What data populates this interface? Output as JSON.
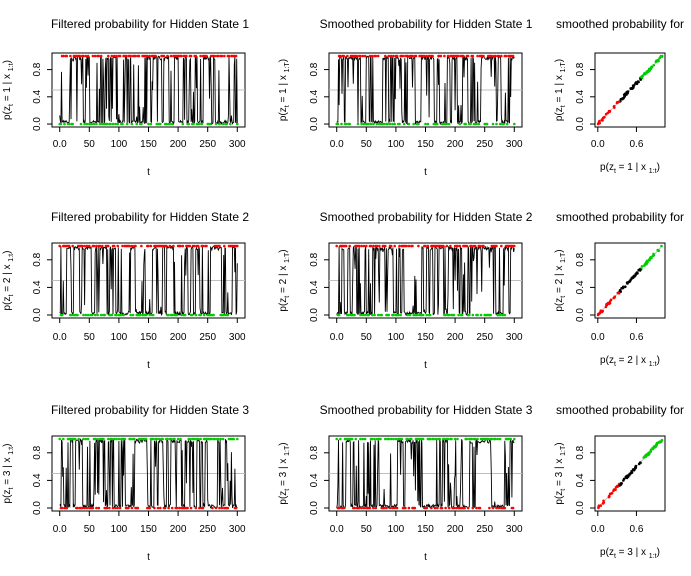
{
  "chart_data": [
    {
      "type": "line",
      "state": 1,
      "kind": "filtered",
      "title": "Filtered probability for Hidden State 1",
      "xlabel": "t",
      "ylabel": {
        "pre": "p(z",
        "sub1": "t",
        "mid": " = 1 | x ",
        "sub2": "1:t",
        "post": ")"
      },
      "xlim": [
        0,
        300
      ],
      "ylim": [
        0,
        1
      ],
      "xticks": [
        0,
        50,
        100,
        150,
        200,
        250,
        300
      ],
      "yticks": [
        0.0,
        0.4,
        0.8
      ],
      "hline": 0.5,
      "dominant_color": "#ff0000",
      "secondary_color": "#00cc00",
      "seed": 11
    },
    {
      "type": "line",
      "state": 1,
      "kind": "smoothed",
      "title": "Smoothed probability for Hidden State 1",
      "xlabel": "t",
      "ylabel": {
        "pre": "p(z",
        "sub1": "t",
        "mid": " = 1 | x ",
        "sub2": "1:T",
        "post": ")"
      },
      "xlim": [
        0,
        300
      ],
      "ylim": [
        0,
        1
      ],
      "xticks": [
        0,
        50,
        100,
        150,
        200,
        250,
        300
      ],
      "yticks": [
        0.0,
        0.4,
        0.8
      ],
      "hline": 0.5,
      "dominant_color": "#ff0000",
      "secondary_color": "#00cc00",
      "seed": 11
    },
    {
      "type": "scatter",
      "state": 1,
      "kind": "comparison",
      "title": "smoothed probability for",
      "xlabel": {
        "pre": "p(z",
        "sub1": "t",
        "mid": " = 1 | x ",
        "sub2": "1:t",
        "post": ")"
      },
      "ylabel": {
        "pre": "p(z",
        "sub1": "t",
        "mid": " = 1 | x ",
        "sub2": "1:T",
        "post": ")"
      },
      "xlim": [
        0,
        1
      ],
      "ylim": [
        0,
        1
      ],
      "xticks": [
        0.0,
        0.6
      ],
      "yticks": [
        0.0,
        0.4,
        0.8
      ],
      "colors": [
        "#ff0000",
        "#000000",
        "#00cc00"
      ],
      "seed": 11
    },
    {
      "type": "line",
      "state": 2,
      "kind": "filtered",
      "title": "Filtered probability for Hidden State 2",
      "xlabel": "t",
      "ylabel": {
        "pre": "p(z",
        "sub1": "t",
        "mid": " = 2 | x ",
        "sub2": "1:t",
        "post": ")"
      },
      "xlim": [
        0,
        300
      ],
      "ylim": [
        0,
        1
      ],
      "xticks": [
        0,
        50,
        100,
        150,
        200,
        250,
        300
      ],
      "yticks": [
        0.0,
        0.4,
        0.8
      ],
      "hline": 0.5,
      "dominant_color": "#ff0000",
      "secondary_color": "#00cc00",
      "seed": 23
    },
    {
      "type": "line",
      "state": 2,
      "kind": "smoothed",
      "title": "Smoothed probability for Hidden State 2",
      "xlabel": "t",
      "ylabel": {
        "pre": "p(z",
        "sub1": "t",
        "mid": " = 2 | x ",
        "sub2": "1:T",
        "post": ")"
      },
      "xlim": [
        0,
        300
      ],
      "ylim": [
        0,
        1
      ],
      "xticks": [
        0,
        50,
        100,
        150,
        200,
        250,
        300
      ],
      "yticks": [
        0.0,
        0.4,
        0.8
      ],
      "hline": 0.5,
      "dominant_color": "#ff0000",
      "secondary_color": "#00cc00",
      "seed": 23
    },
    {
      "type": "scatter",
      "state": 2,
      "kind": "comparison",
      "title": "smoothed probability for",
      "xlabel": {
        "pre": "p(z",
        "sub1": "t",
        "mid": " = 2 | x ",
        "sub2": "1:t",
        "post": ")"
      },
      "ylabel": {
        "pre": "p(z",
        "sub1": "t",
        "mid": " = 2 | x ",
        "sub2": "1:T",
        "post": ")"
      },
      "xlim": [
        0,
        1
      ],
      "ylim": [
        0,
        1
      ],
      "xticks": [
        0.0,
        0.6
      ],
      "yticks": [
        0.0,
        0.4,
        0.8
      ],
      "colors": [
        "#ff0000",
        "#000000",
        "#00cc00"
      ],
      "seed": 23
    },
    {
      "type": "line",
      "state": 3,
      "kind": "filtered",
      "title": "Filtered probability for Hidden State 3",
      "xlabel": "t",
      "ylabel": {
        "pre": "p(z",
        "sub1": "t",
        "mid": " = 3 | x ",
        "sub2": "1:t",
        "post": ")"
      },
      "xlim": [
        0,
        300
      ],
      "ylim": [
        0,
        1
      ],
      "xticks": [
        0,
        50,
        100,
        150,
        200,
        250,
        300
      ],
      "yticks": [
        0.0,
        0.4,
        0.8
      ],
      "hline": 0.5,
      "dominant_color": "#00cc00",
      "secondary_color": "#ff0000",
      "seed": 37
    },
    {
      "type": "line",
      "state": 3,
      "kind": "smoothed",
      "title": "Smoothed probability for Hidden State 3",
      "xlabel": "t",
      "ylabel": {
        "pre": "p(z",
        "sub1": "t",
        "mid": " = 3 | x ",
        "sub2": "1:T",
        "post": ")"
      },
      "xlim": [
        0,
        300
      ],
      "ylim": [
        0,
        1
      ],
      "xticks": [
        0,
        50,
        100,
        150,
        200,
        250,
        300
      ],
      "yticks": [
        0.0,
        0.4,
        0.8
      ],
      "hline": 0.5,
      "dominant_color": "#00cc00",
      "secondary_color": "#ff0000",
      "seed": 37
    },
    {
      "type": "scatter",
      "state": 3,
      "kind": "comparison",
      "title": "smoothed probability for",
      "xlabel": {
        "pre": "p(z",
        "sub1": "t",
        "mid": " = 3 | x ",
        "sub2": "1:t",
        "post": ")"
      },
      "ylabel": {
        "pre": "p(z",
        "sub1": "t",
        "mid": " = 3 | x ",
        "sub2": "1:T",
        "post": ")"
      },
      "xlim": [
        0,
        1
      ],
      "ylim": [
        0,
        1
      ],
      "xticks": [
        0.0,
        0.6
      ],
      "yticks": [
        0.0,
        0.4,
        0.8
      ],
      "colors": [
        "#ff0000",
        "#000000",
        "#00cc00"
      ],
      "seed": 37
    }
  ]
}
